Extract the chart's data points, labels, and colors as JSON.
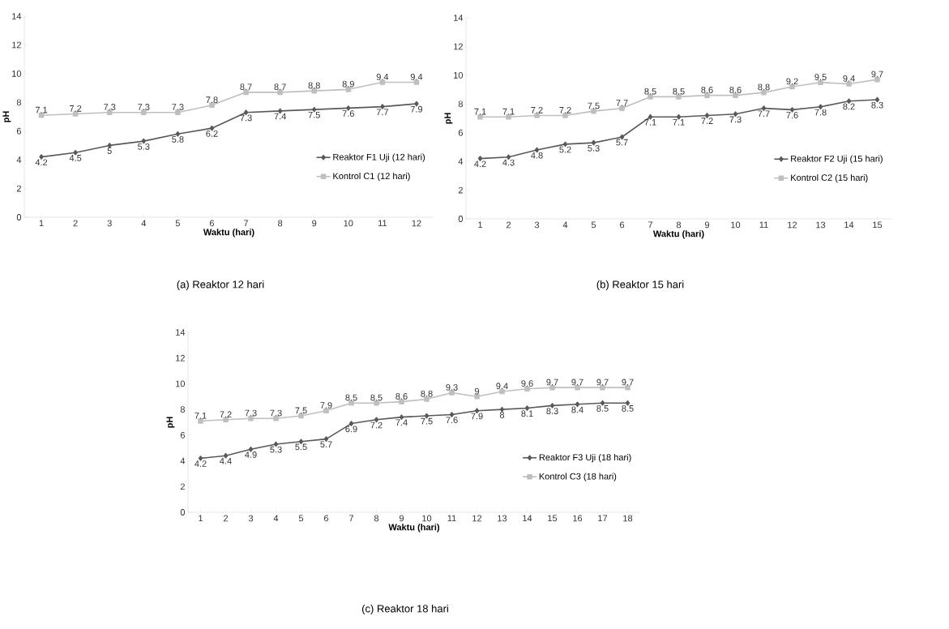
{
  "chart_data": [
    {
      "type": "line",
      "xlabel": "Waktu (hari)",
      "ylabel": "pH",
      "categories": [
        "1",
        "2",
        "3",
        "4",
        "5",
        "6",
        "7",
        "8",
        "9",
        "10",
        "11",
        "12"
      ],
      "ylim": [
        0,
        14
      ],
      "yticks": [
        0,
        2,
        4,
        6,
        8,
        10,
        12,
        14
      ],
      "legend": "right",
      "data_labels": true,
      "annotations": [
        "(a) Reaktor 12 hari"
      ],
      "series": [
        {
          "name": "Reaktor F1 Uji (12 hari)",
          "color": "#595959",
          "marker": "diamond",
          "values": [
            4.2,
            4.5,
            5,
            5.3,
            5.8,
            6.2,
            7.3,
            7.4,
            7.5,
            7.6,
            7.7,
            7.9
          ]
        },
        {
          "name": "Kontrol C1 (12 hari)",
          "color": "#bfbfbf",
          "marker": "square",
          "values": [
            7.1,
            7.2,
            7.3,
            7.3,
            7.3,
            7.8,
            8.7,
            8.7,
            8.8,
            8.9,
            9.4,
            9.4
          ]
        }
      ]
    },
    {
      "type": "line",
      "xlabel": "Waktu (hari)",
      "ylabel": "pH",
      "categories": [
        "1",
        "2",
        "3",
        "4",
        "5",
        "6",
        "7",
        "8",
        "9",
        "10",
        "11",
        "12",
        "13",
        "14",
        "15"
      ],
      "ylim": [
        0,
        14
      ],
      "yticks": [
        0,
        2,
        4,
        6,
        8,
        10,
        12,
        14
      ],
      "legend": "right",
      "data_labels": true,
      "annotations": [
        "(b) Reaktor 15 hari"
      ],
      "series": [
        {
          "name": "Reaktor F2 Uji (15 hari)",
          "color": "#595959",
          "marker": "diamond",
          "values": [
            4.2,
            4.3,
            4.8,
            5.2,
            5.3,
            5.7,
            7.1,
            7.1,
            7.2,
            7.3,
            7.7,
            7.6,
            7.8,
            8.2,
            8.3
          ]
        },
        {
          "name": "Kontrol C2 (15 hari)",
          "color": "#bfbfbf",
          "marker": "square",
          "values": [
            7.1,
            7.1,
            7.2,
            7.2,
            7.5,
            7.7,
            8.5,
            8.5,
            8.6,
            8.6,
            8.8,
            9.2,
            9.5,
            9.4,
            9.7
          ]
        }
      ]
    },
    {
      "type": "line",
      "xlabel": "Waktu (hari)",
      "ylabel": "pH",
      "categories": [
        "1",
        "2",
        "3",
        "4",
        "5",
        "6",
        "7",
        "8",
        "9",
        "10",
        "11",
        "12",
        "13",
        "14",
        "15",
        "16",
        "17",
        "18"
      ],
      "ylim": [
        0,
        14
      ],
      "yticks": [
        0,
        2,
        4,
        6,
        8,
        10,
        12,
        14
      ],
      "legend": "right",
      "data_labels": true,
      "annotations": [
        "(c) Reaktor 18 hari"
      ],
      "series": [
        {
          "name": "Reaktor F3 Uji (18 hari)",
          "color": "#595959",
          "marker": "diamond",
          "values": [
            4.2,
            4.4,
            4.9,
            5.3,
            5.5,
            5.7,
            6.9,
            7.2,
            7.4,
            7.5,
            7.6,
            7.9,
            8,
            8.1,
            8.3,
            8.4,
            8.5,
            8.5
          ]
        },
        {
          "name": "Kontrol C3 (18 hari)",
          "color": "#bfbfbf",
          "marker": "square",
          "values": [
            7.1,
            7.2,
            7.3,
            7.3,
            7.5,
            7.9,
            8.5,
            8.5,
            8.6,
            8.8,
            9.3,
            9,
            9.4,
            9.6,
            9.7,
            9.7,
            9.7,
            9.7
          ]
        }
      ]
    }
  ]
}
